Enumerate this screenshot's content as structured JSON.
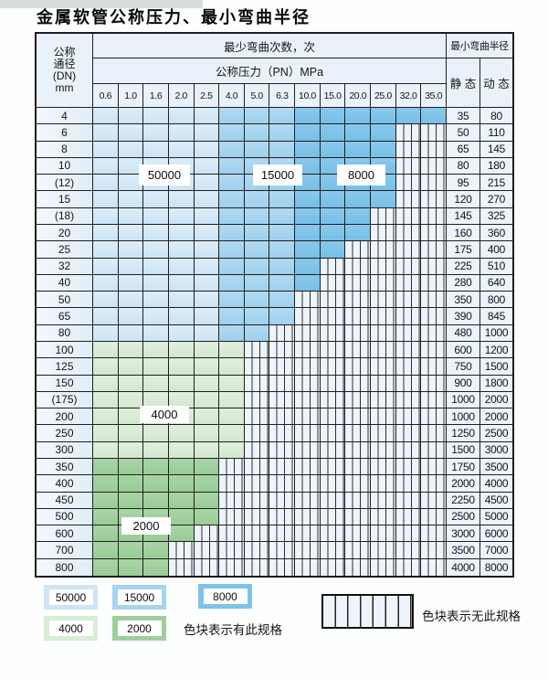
{
  "page": {
    "title": "金属软管公称压力、最小弯曲半径"
  },
  "table": {
    "header": {
      "dn_lines": [
        "公称",
        "通径",
        "(DN)",
        "mm"
      ],
      "bend_cycles_label": "最少弯曲次数，次",
      "pressure_label": "公称压力（PN）MPa",
      "radius_label": "最小弯曲半径",
      "static_label": "静 态",
      "dynamic_label": "动 态"
    },
    "overlays": [
      "50000",
      "15000",
      "8000",
      "4000",
      "2000"
    ]
  },
  "legend": {
    "available_label": "色块表示有此规格",
    "unavailable_label": "色块表示无此规格",
    "swatches": [
      {
        "label": "50000",
        "palette": "b1"
      },
      {
        "label": "15000",
        "palette": "b2"
      },
      {
        "label": "8000",
        "palette": "b3"
      },
      {
        "label": "4000",
        "palette": "g1"
      },
      {
        "label": "2000",
        "palette": "g2"
      }
    ]
  },
  "colors": {
    "cycles_50000": "#cfe4f5",
    "cycles_15000": "#a8d4ef",
    "cycles_8000": "#7fc3e9",
    "cycles_4000": "#d9ecd6",
    "cycles_2000": "#9fce9d",
    "no_spec_bg": "#eef4fb",
    "header_bg": "#e9f2fa",
    "grid_line": "#1f1f1f"
  },
  "chart_data": {
    "type": "table",
    "title": "金属软管公称压力、最小弯曲半径",
    "pressure_columns": [
      "0.6",
      "1.0",
      "1.6",
      "2.0",
      "2.5",
      "4.0",
      "5.0",
      "6.3",
      "10.0",
      "15.0",
      "20.0",
      "25.0",
      "32.0",
      "35.0"
    ],
    "pressure_values_MPa": [
      0.6,
      1.0,
      1.6,
      2.0,
      2.5,
      4.0,
      5.0,
      6.3,
      10.0,
      15.0,
      20.0,
      25.0,
      32.0,
      35.0
    ],
    "cycle_groups_small_dn_by_pressure": {
      "0.6-2.5": 50000,
      "4.0-6.3": 15000,
      "10.0-35.0": 8000
    },
    "cycle_groups_large_dn_by_row": {
      "DN100-300": 4000,
      "DN350-800": 2000
    },
    "legend_notes": {
      "colored": "色块表示有此规格",
      "hatched": "色块表示无此规格"
    },
    "rows": [
      {
        "dn": "4",
        "pn_max": "35.0",
        "palette": "blue",
        "radius_static": 35,
        "radius_dynamic": 80
      },
      {
        "dn": "6",
        "pn_max": "25.0",
        "palette": "blue",
        "radius_static": 50,
        "radius_dynamic": 110
      },
      {
        "dn": "8",
        "pn_max": "25.0",
        "palette": "blue",
        "radius_static": 65,
        "radius_dynamic": 145
      },
      {
        "dn": "10",
        "pn_max": "25.0",
        "palette": "blue",
        "radius_static": 80,
        "radius_dynamic": 180
      },
      {
        "dn": "(12)",
        "pn_max": "25.0",
        "palette": "blue",
        "radius_static": 95,
        "radius_dynamic": 215
      },
      {
        "dn": "15",
        "pn_max": "25.0",
        "palette": "blue",
        "radius_static": 120,
        "radius_dynamic": 270
      },
      {
        "dn": "(18)",
        "pn_max": "20.0",
        "palette": "blue",
        "radius_static": 145,
        "radius_dynamic": 325
      },
      {
        "dn": "20",
        "pn_max": "20.0",
        "palette": "blue",
        "radius_static": 160,
        "radius_dynamic": 360
      },
      {
        "dn": "25",
        "pn_max": "15.0",
        "palette": "blue",
        "radius_static": 175,
        "radius_dynamic": 400
      },
      {
        "dn": "32",
        "pn_max": "10.0",
        "palette": "blue",
        "radius_static": 225,
        "radius_dynamic": 510
      },
      {
        "dn": "40",
        "pn_max": "10.0",
        "palette": "blue",
        "radius_static": 280,
        "radius_dynamic": 640
      },
      {
        "dn": "50",
        "pn_max": "6.3",
        "palette": "blue",
        "radius_static": 350,
        "radius_dynamic": 800
      },
      {
        "dn": "65",
        "pn_max": "6.3",
        "palette": "blue",
        "radius_static": 390,
        "radius_dynamic": 845
      },
      {
        "dn": "80",
        "pn_max": "5.0",
        "palette": "blue",
        "radius_static": 480,
        "radius_dynamic": 1000
      },
      {
        "dn": "100",
        "pn_max": "4.0",
        "palette": "green-4000",
        "radius_static": 600,
        "radius_dynamic": 1200
      },
      {
        "dn": "125",
        "pn_max": "4.0",
        "palette": "green-4000",
        "radius_static": 750,
        "radius_dynamic": 1500
      },
      {
        "dn": "150",
        "pn_max": "4.0",
        "palette": "green-4000",
        "radius_static": 900,
        "radius_dynamic": 1800
      },
      {
        "dn": "(175)",
        "pn_max": "4.0",
        "palette": "green-4000",
        "radius_static": 1000,
        "radius_dynamic": 2000
      },
      {
        "dn": "200",
        "pn_max": "4.0",
        "palette": "green-4000",
        "radius_static": 1000,
        "radius_dynamic": 2000
      },
      {
        "dn": "250",
        "pn_max": "4.0",
        "palette": "green-4000",
        "radius_static": 1250,
        "radius_dynamic": 2500
      },
      {
        "dn": "300",
        "pn_max": "4.0",
        "palette": "green-4000",
        "radius_static": 1500,
        "radius_dynamic": 3000
      },
      {
        "dn": "350",
        "pn_max": "2.5",
        "palette": "green-2000",
        "radius_static": 1750,
        "radius_dynamic": 3500
      },
      {
        "dn": "400",
        "pn_max": "2.5",
        "palette": "green-2000",
        "radius_static": 2000,
        "radius_dynamic": 4000
      },
      {
        "dn": "450",
        "pn_max": "2.5",
        "palette": "green-2000",
        "radius_static": 2250,
        "radius_dynamic": 4500
      },
      {
        "dn": "500",
        "pn_max": "2.5",
        "palette": "green-2000",
        "radius_static": 2500,
        "radius_dynamic": 5000
      },
      {
        "dn": "600",
        "pn_max": "2.0",
        "palette": "green-2000",
        "radius_static": 3000,
        "radius_dynamic": 6000
      },
      {
        "dn": "700",
        "pn_max": "1.6",
        "palette": "green-2000",
        "radius_static": 3500,
        "radius_dynamic": 7000
      },
      {
        "dn": "800",
        "pn_max": "1.6",
        "palette": "green-2000",
        "radius_static": 4000,
        "radius_dynamic": 8000
      }
    ]
  }
}
